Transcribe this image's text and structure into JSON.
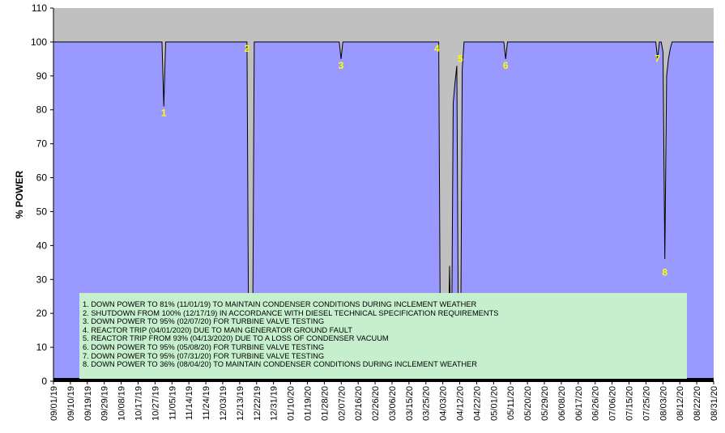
{
  "chart_data": {
    "type": "area",
    "ylabel": "% POWER",
    "xlabel": "",
    "title": "",
    "ylim": [
      0,
      110
    ],
    "yticks": [
      0,
      10,
      20,
      30,
      40,
      50,
      60,
      70,
      80,
      90,
      100,
      110
    ],
    "grid": false,
    "legend": "none",
    "x_tick_labels": [
      "09/01/19",
      "09/10/19",
      "09/19/19",
      "09/29/19",
      "10/08/19",
      "10/17/19",
      "10/27/19",
      "11/05/19",
      "11/14/19",
      "11/24/19",
      "12/03/19",
      "12/13/19",
      "12/22/19",
      "12/31/19",
      "01/10/20",
      "01/19/20",
      "01/28/20",
      "02/07/20",
      "02/16/20",
      "02/26/20",
      "03/06/20",
      "03/15/20",
      "03/25/20",
      "04/03/20",
      "04/12/20",
      "04/22/20",
      "05/01/20",
      "05/11/20",
      "05/20/20",
      "05/29/20",
      "06/08/20",
      "06/17/20",
      "06/26/20",
      "07/06/20",
      "07/15/20",
      "07/25/20",
      "08/03/20",
      "08/12/20",
      "08/22/20",
      "08/31/20"
    ],
    "x_start": "09/01/19",
    "x_end": "08/31/20",
    "series": [
      {
        "x": [
          "09/01/19",
          "10/31/19",
          "11/01/19",
          "11/02/19",
          "12/16/19",
          "12/17/19",
          "12/18/19",
          "12/19/19",
          "12/20/19",
          "12/21/19",
          "02/06/20",
          "02/07/20",
          "02/08/20",
          "03/31/20",
          "04/01/20",
          "04/02/20",
          "04/03/20",
          "04/04/20",
          "04/05/20",
          "04/06/20",
          "04/07/20",
          "04/08/20",
          "04/09/20",
          "04/10/20",
          "04/11/20",
          "04/12/20",
          "04/13/20",
          "04/14/20",
          "04/15/20",
          "04/16/20",
          "04/17/20",
          "04/18/20",
          "04/19/20",
          "05/07/20",
          "05/08/20",
          "05/09/20",
          "07/30/20",
          "07/31/20",
          "08/01/20",
          "08/02/20",
          "08/03/20",
          "08/04/20",
          "08/05/20",
          "08/06/20",
          "08/07/20",
          "08/08/20",
          "08/31/20"
        ],
        "values": [
          100,
          100,
          81,
          100,
          100,
          100,
          0,
          0,
          0,
          100,
          100,
          95,
          100,
          100,
          100,
          0,
          0,
          0,
          0,
          0,
          34,
          0,
          82,
          88,
          93,
          0,
          0,
          92,
          100,
          100,
          100,
          100,
          100,
          100,
          95,
          100,
          100,
          95,
          100,
          100,
          97,
          36,
          90,
          95,
          98,
          100,
          100
        ]
      }
    ],
    "colors": {
      "series_fill": "#9999ff",
      "background": "#c0c0c0",
      "markers": "#ffff00",
      "notes_box": "#c6efce"
    },
    "annotations": [
      {
        "label": "1",
        "date": "11/01/19",
        "y": 81
      },
      {
        "label": "2",
        "date": "12/17/19",
        "y": 100
      },
      {
        "label": "3",
        "date": "02/07/20",
        "y": 95
      },
      {
        "label": "4",
        "date": "03/31/20",
        "y": 100
      },
      {
        "label": "5",
        "date": "04/13/20",
        "y": 97
      },
      {
        "label": "6",
        "date": "05/08/20",
        "y": 95
      },
      {
        "label": "7",
        "date": "07/31/20",
        "y": 97
      },
      {
        "label": "8",
        "date": "08/04/20",
        "y": 34
      }
    ],
    "notes": [
      "1. DOWN POWER TO 81% (11/01/19) TO MAINTAIN CONDENSER CONDITIONS DURING INCLEMENT WEATHER",
      "2. SHUTDOWN FROM 100% (12/17/19) IN ACCORDANCE WITH DIESEL TECHNICAL SPECIFICATION REQUIREMENTS",
      "3. DOWN POWER TO 95% (02/07/20) FOR TURBINE VALVE TESTING",
      "4. REACTOR TRIP (04/01/2020) DUE TO MAIN GENERATOR GROUND FAULT",
      "5. REACTOR TRIP FROM 93% (04/13/2020) DUE TO A LOSS OF CONDENSER VACUUM",
      "6. DOWN POWER TO 95% (05/08/20) FOR TURBINE VALVE TESTING",
      "7. DOWN POWER TO 95% (07/31/20) FOR TURBINE VALVE TESTING",
      "8. DOWN POWER TO 36% (08/04/20) TO MAINTAIN CONDENSER CONDITIONS DURING INCLEMENT WEATHER"
    ]
  }
}
